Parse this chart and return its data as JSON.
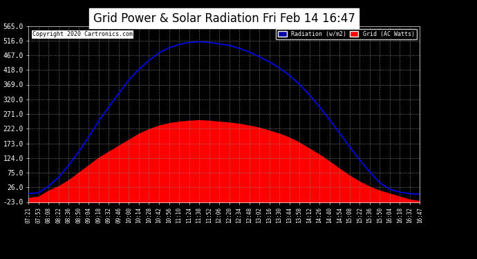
{
  "title": "Grid Power & Solar Radiation Fri Feb 14 16:47",
  "copyright": "Copyright 2020 Cartronics.com",
  "yticks": [
    -23.0,
    26.0,
    75.0,
    124.0,
    173.0,
    222.0,
    271.0,
    320.0,
    369.0,
    418.0,
    467.0,
    516.0,
    565.0
  ],
  "ymin": -23.0,
  "ymax": 565.0,
  "legend_radiation": "Radiation (w/m2)",
  "legend_grid": "Grid (AC Watts)",
  "bg_color": "#000000",
  "plot_bg_color": "#000000",
  "grid_color": "#888888",
  "radiation_color": "#0000ff",
  "grid_fill_color": "#ff0000",
  "xtick_labels": [
    "07:21",
    "07:53",
    "08:08",
    "08:22",
    "08:36",
    "08:50",
    "09:04",
    "09:18",
    "09:32",
    "09:46",
    "10:00",
    "10:14",
    "10:28",
    "10:42",
    "10:56",
    "11:10",
    "11:24",
    "11:38",
    "11:52",
    "12:06",
    "12:20",
    "12:34",
    "12:48",
    "13:02",
    "13:16",
    "13:30",
    "13:44",
    "13:58",
    "14:12",
    "14:26",
    "14:40",
    "14:54",
    "15:08",
    "15:22",
    "15:36",
    "15:50",
    "16:04",
    "16:18",
    "16:32",
    "16:47"
  ],
  "radiation_values": [
    5,
    8,
    30,
    60,
    100,
    145,
    195,
    248,
    295,
    340,
    385,
    420,
    450,
    475,
    492,
    503,
    510,
    512,
    510,
    505,
    500,
    490,
    478,
    462,
    445,
    425,
    400,
    370,
    335,
    295,
    252,
    208,
    162,
    118,
    78,
    42,
    20,
    10,
    5,
    3
  ],
  "grid_values": [
    -10,
    -5,
    15,
    30,
    50,
    75,
    100,
    125,
    145,
    165,
    185,
    205,
    220,
    232,
    240,
    245,
    248,
    250,
    248,
    245,
    242,
    238,
    232,
    225,
    215,
    205,
    192,
    175,
    155,
    135,
    112,
    88,
    65,
    45,
    28,
    15,
    5,
    -5,
    -15,
    -20
  ]
}
